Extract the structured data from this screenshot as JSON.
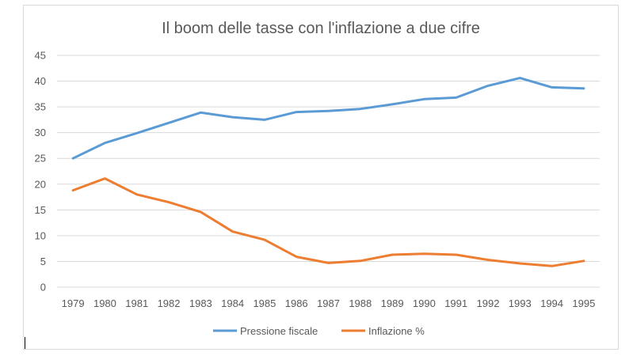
{
  "chart_data": {
    "type": "line",
    "title": "Il boom delle tasse con l'inflazione a due cifre",
    "categories": [
      "1979",
      "1980",
      "1981",
      "1982",
      "1983",
      "1984",
      "1985",
      "1986",
      "1987",
      "1988",
      "1989",
      "1990",
      "1991",
      "1992",
      "1993",
      "1994",
      "1995"
    ],
    "series": [
      {
        "name": "Pressione fiscale",
        "color": "#5b9bd5",
        "values": [
          25.0,
          28.0,
          29.9,
          31.9,
          33.9,
          33.0,
          32.5,
          34.0,
          34.2,
          34.6,
          35.5,
          36.5,
          36.8,
          39.1,
          40.6,
          38.8,
          38.6
        ]
      },
      {
        "name": "Inflazione %",
        "color": "#ed7d31",
        "values": [
          18.8,
          21.1,
          18.0,
          16.5,
          14.6,
          10.8,
          9.2,
          5.9,
          4.7,
          5.1,
          6.3,
          6.5,
          6.3,
          5.3,
          4.6,
          4.1,
          5.1
        ]
      }
    ],
    "ylim": [
      0,
      45
    ],
    "yticks": [
      0,
      5,
      10,
      15,
      20,
      25,
      30,
      35,
      40,
      45
    ],
    "grid": true,
    "legend_position": "bottom"
  }
}
